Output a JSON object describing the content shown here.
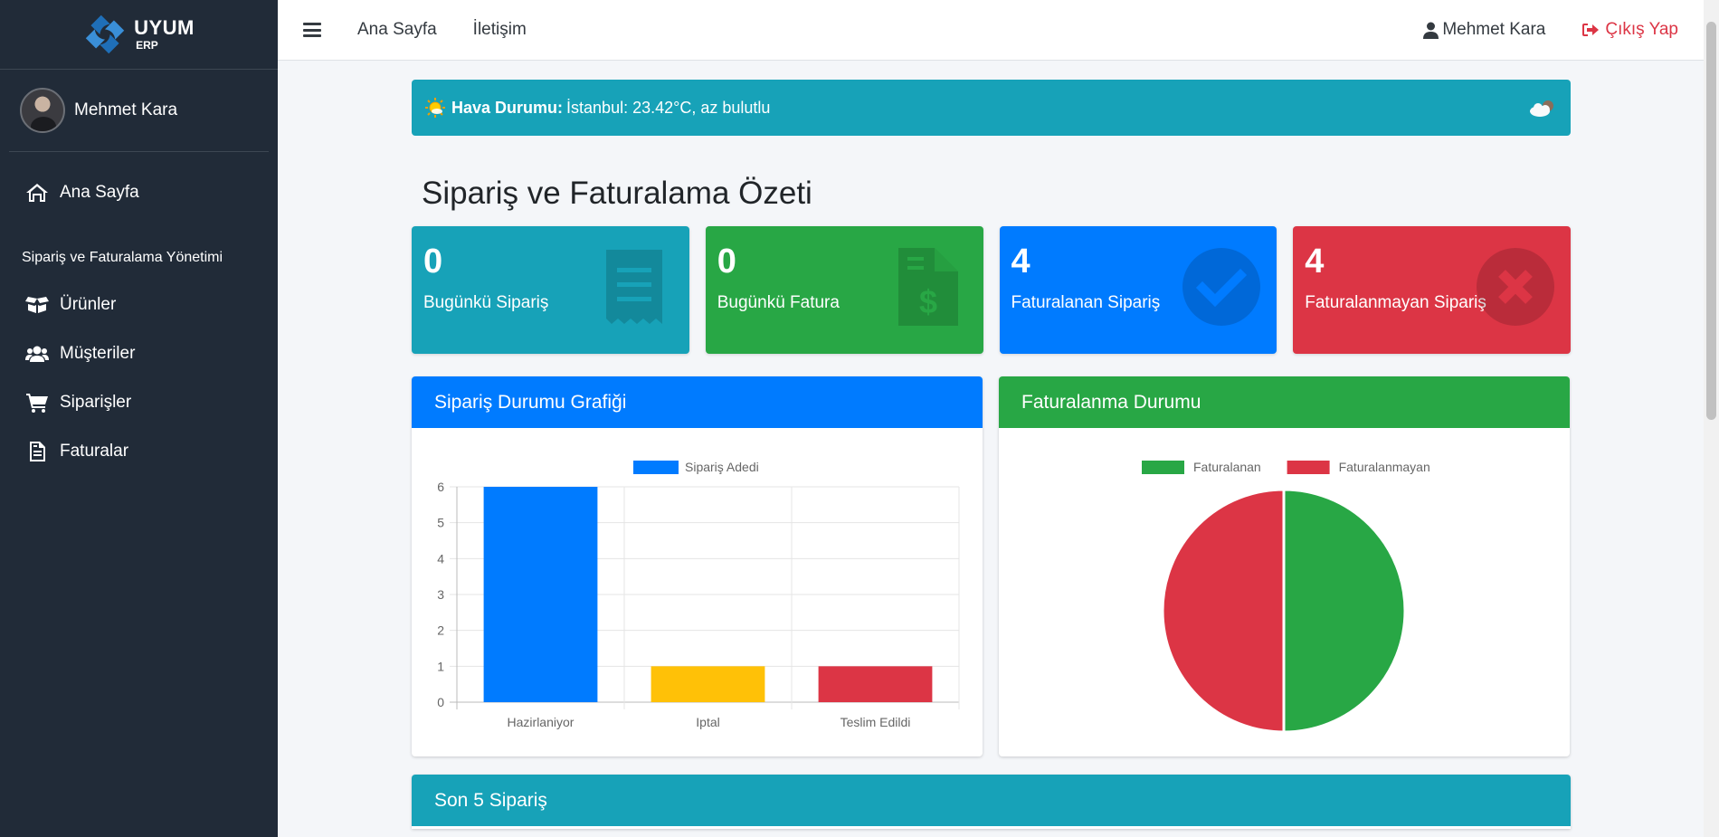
{
  "brand": {
    "name": "UYUM",
    "sub": "ERP"
  },
  "sidebar": {
    "user_name": "Mehmet Kara",
    "items": [
      {
        "label": "Ana Sayfa",
        "icon": "home-icon"
      },
      {
        "header": "Sipariş ve Faturalama Yönetimi"
      },
      {
        "label": "Ürünler",
        "icon": "box-open-icon"
      },
      {
        "label": "Müşteriler",
        "icon": "users-icon"
      },
      {
        "label": "Siparişler",
        "icon": "shopping-cart-icon"
      },
      {
        "label": "Faturalar",
        "icon": "file-invoice-icon"
      }
    ]
  },
  "topbar": {
    "links": [
      "Ana Sayfa",
      "İletişim"
    ],
    "user": "Mehmet Kara",
    "logout": "Çıkış Yap"
  },
  "weather": {
    "label": "Hava Durumu:",
    "text": "İstanbul: 23.42°C, az bulutlu"
  },
  "page_title": "Sipariş ve Faturalama Özeti",
  "stats": [
    {
      "value": "0",
      "label": "Bugünkü Sipariş",
      "icon": "receipt-icon",
      "color": "#17a2b8"
    },
    {
      "value": "0",
      "label": "Bugünkü Fatura",
      "icon": "file-invoice-dollar-icon",
      "color": "#28a745"
    },
    {
      "value": "4",
      "label": "Faturalanan Sipariş",
      "icon": "check-circle-icon",
      "color": "#007bff"
    },
    {
      "value": "4",
      "label": "Faturalanmayan Sipariş",
      "icon": "times-circle-icon",
      "color": "#dc3545"
    }
  ],
  "cards": {
    "bar_title": "Sipariş Durumu Grafiği",
    "pie_title": "Faturalanma Durumu",
    "last_orders_title": "Son 5 Sipariş"
  },
  "colors": {
    "info": "#17a2b8",
    "success": "#28a745",
    "primary": "#007bff",
    "danger": "#dc3545",
    "warning": "#ffc107",
    "sidebar": "#212b38"
  },
  "chart_data": [
    {
      "type": "bar",
      "title": "",
      "categories": [
        "Hazirlaniyor",
        "Iptal",
        "Teslim Edildi"
      ],
      "series": [
        {
          "name": "Sipariş Adedi",
          "values": [
            6,
            1,
            1
          ]
        }
      ],
      "bar_colors": [
        "#007bff",
        "#ffc107",
        "#dc3545"
      ],
      "ylim": [
        0,
        6
      ],
      "yticks": [
        0,
        1,
        2,
        3,
        4,
        5,
        6
      ],
      "grid": true,
      "legend": "top"
    },
    {
      "type": "pie",
      "title": "",
      "labels": [
        "Faturalanan",
        "Faturalanmayan"
      ],
      "values": [
        4,
        4
      ],
      "colors": [
        "#28a745",
        "#dc3545"
      ],
      "legend": "top"
    }
  ]
}
